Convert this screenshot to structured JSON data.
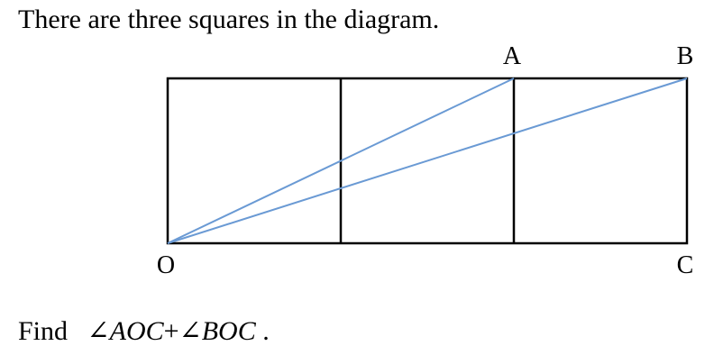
{
  "intro_text": "There are three squares in the diagram.",
  "question": {
    "prefix": "Find",
    "angle_symbol": "∠",
    "angle1": "AOC",
    "plus": "+",
    "angle2": "BOC",
    "suffix": "."
  },
  "diagram": {
    "point_labels": {
      "A": "A",
      "B": "B",
      "O": "O",
      "C": "C"
    },
    "square_count": 3,
    "line_color": "#000000",
    "ray_color": "#6a9ad4"
  }
}
